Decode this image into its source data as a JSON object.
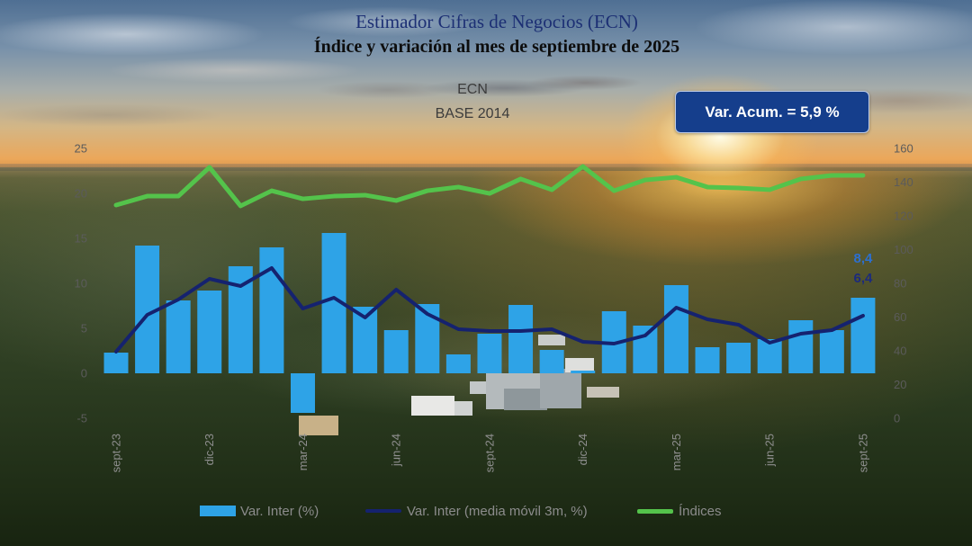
{
  "title": "Estimador Cifras de Negocios (ECN)",
  "subtitle": "Índice y variación al mes de septiembre de 2025",
  "chart_header": {
    "name": "ECN",
    "base": "BASE 2014"
  },
  "badge": {
    "text": "Var. Acum. = 5,9 %",
    "color": "#153e8c"
  },
  "chart_data": {
    "type": "bar",
    "categories": [
      "sept-23",
      "",
      "",
      "dic-23",
      "",
      "",
      "mar-24",
      "",
      "",
      "jun-24",
      "",
      "",
      "sept-24",
      "",
      "",
      "dic-24",
      "",
      "",
      "mar-25",
      "",
      "",
      "jun-25",
      "",
      "",
      "sept-25"
    ],
    "series": [
      {
        "name": "Var. Inter (%)",
        "type": "bar",
        "axis": "left",
        "color": "#2ea3e7",
        "values": [
          2.3,
          14.2,
          8.1,
          9.2,
          11.9,
          14.0,
          -4.4,
          15.6,
          7.4,
          4.8,
          7.7,
          2.1,
          4.4,
          7.6,
          2.6,
          0.3,
          6.9,
          5.3,
          9.8,
          2.9,
          3.4,
          3.8,
          5.9,
          4.8,
          8.4
        ]
      },
      {
        "name": "Var. Inter (media móvil 3m, %)",
        "type": "line",
        "axis": "left",
        "color": "#15226f",
        "values": [
          2.4,
          6.5,
          8.2,
          10.5,
          9.7,
          11.7,
          7.2,
          8.4,
          6.2,
          9.3,
          6.6,
          4.9,
          4.7,
          4.7,
          4.9,
          3.5,
          3.3,
          4.2,
          7.3,
          6.0,
          5.4,
          3.4,
          4.4,
          4.8,
          6.4
        ]
      },
      {
        "name": "Índices",
        "type": "line",
        "axis": "right",
        "color": "#54c34b",
        "values": [
          126.4,
          131.7,
          131.7,
          148.8,
          125.9,
          134.9,
          130.1,
          131.7,
          132.3,
          129.1,
          134.9,
          137.1,
          133.3,
          141.9,
          135.5,
          149.3,
          134.9,
          141.3,
          142.9,
          137.1,
          136.5,
          135.5,
          141.9,
          144.0,
          144.0
        ]
      }
    ],
    "y_left": {
      "range": [
        -5,
        25
      ],
      "ticks": [
        25,
        20,
        15,
        10,
        5,
        0,
        -5
      ]
    },
    "y_right": {
      "range": [
        0,
        160
      ],
      "ticks": [
        160,
        140,
        120,
        100,
        80,
        60,
        40,
        20,
        0
      ]
    },
    "data_labels": [
      {
        "series": 0,
        "index": 24,
        "text": "8,4",
        "color": "#2c6fd0"
      },
      {
        "series": 1,
        "index": 24,
        "text": "6,4",
        "color": "#1c2b7c"
      }
    ],
    "legend": "bottom",
    "grid": false
  }
}
